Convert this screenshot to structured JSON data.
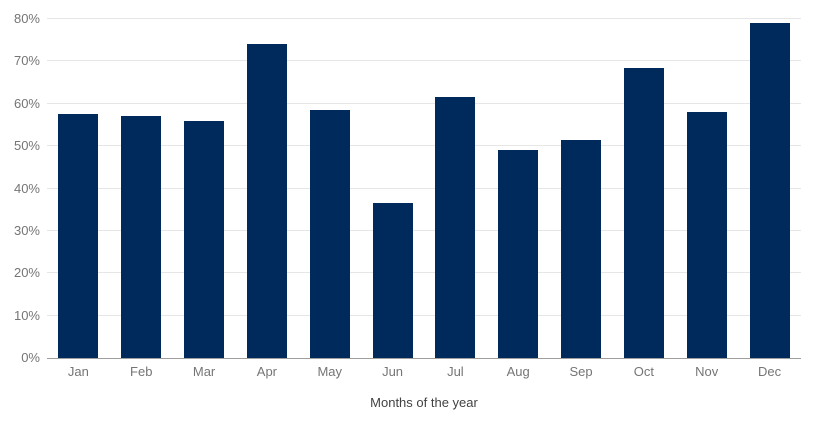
{
  "chart_data": {
    "type": "bar",
    "title": "",
    "xlabel": "Months of the year",
    "ylabel": "",
    "categories": [
      "Jan",
      "Feb",
      "Mar",
      "Apr",
      "May",
      "Jun",
      "Jul",
      "Aug",
      "Sep",
      "Oct",
      "Nov",
      "Dec"
    ],
    "values": [
      57.5,
      57,
      56,
      74,
      58.5,
      36.5,
      61.5,
      49,
      51.5,
      68.5,
      58,
      79
    ],
    "value_unit": "%",
    "ylim": [
      0,
      80
    ],
    "ytick_step": 10,
    "ytick_labels": [
      "0%",
      "10%",
      "20%",
      "30%",
      "40%",
      "50%",
      "60%",
      "70%",
      "80%"
    ],
    "grid": "horizontal",
    "legend": "none"
  },
  "colors": {
    "bar": "#002a5c",
    "gridline": "#e6e6e6",
    "axis_line": "#9e9e9e",
    "tick_label": "#757575",
    "axis_title": "#424242",
    "background": "#ffffff"
  }
}
